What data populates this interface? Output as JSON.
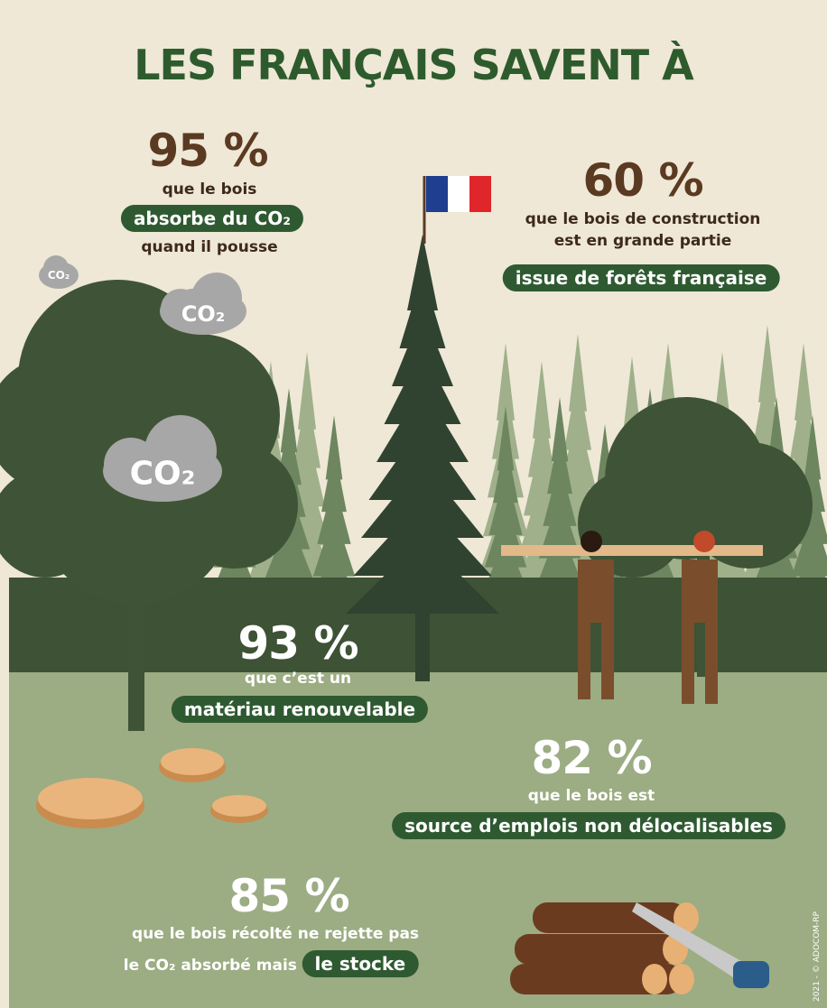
{
  "header": {
    "title": "LES FRANÇAIS SAVENT À"
  },
  "stats": [
    {
      "figure": "95 %",
      "before": "que le bois",
      "highlight": "absorbe du CO₂",
      "after": "quand il pousse"
    },
    {
      "figure": "60 %",
      "before": [
        "que le bois de construction",
        "est en grande partie"
      ],
      "highlight": "issue de forêts française"
    },
    {
      "figure": "93 %",
      "before": "que c’est un",
      "highlight": "matériau renouvelable"
    },
    {
      "figure": "82 %",
      "before": "que le bois est",
      "highlight": "source d’emplois non délocalisables"
    },
    {
      "figure": "85 %",
      "before": "que le bois récolté ne rejette pas",
      "lead": "le CO₂ absorbé mais",
      "highlight": "le stocke"
    }
  ],
  "clouds": [
    "CO₂",
    "CO₂",
    "CO₂"
  ],
  "credit": "2021 - © ADOCOM-RP"
}
